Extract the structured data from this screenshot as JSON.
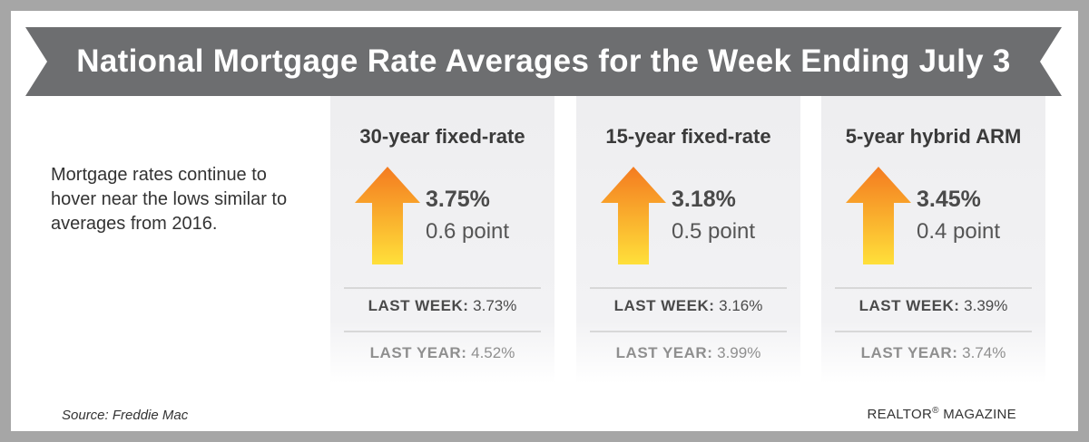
{
  "title": "National Mortgage Rate Averages for the Week Ending July 3",
  "intro": "Mortgage rates continue to hover near the lows similar to averages from 2016.",
  "cards": [
    {
      "label": "30-year fixed-rate",
      "rate": "3.75%",
      "change": "0.6 point",
      "trend": "up",
      "last_week_label": "LAST WEEK:",
      "last_week": "3.73%",
      "last_year_label": "LAST YEAR:",
      "last_year": "4.52%"
    },
    {
      "label": "15-year fixed-rate",
      "rate": "3.18%",
      "change": "0.5 point",
      "trend": "up",
      "last_week_label": "LAST WEEK:",
      "last_week": "3.16%",
      "last_year_label": "LAST YEAR:",
      "last_year": "3.99%"
    },
    {
      "label": "5-year hybrid ARM",
      "rate": "3.45%",
      "change": "0.4 point",
      "trend": "up",
      "last_week_label": "LAST WEEK:",
      "last_week": "3.39%",
      "last_year_label": "LAST YEAR:",
      "last_year": "3.74%"
    }
  ],
  "footer": {
    "source": "Source: Freddie Mac",
    "brand": "REALTOR",
    "brand_mark": "®",
    "brand_suffix": "MAGAZINE"
  },
  "colors": {
    "banner": "#6d6e70",
    "frame": "#a6a6a6",
    "arrow_top": "#f47b20",
    "arrow_bottom": "#ffe03a"
  }
}
